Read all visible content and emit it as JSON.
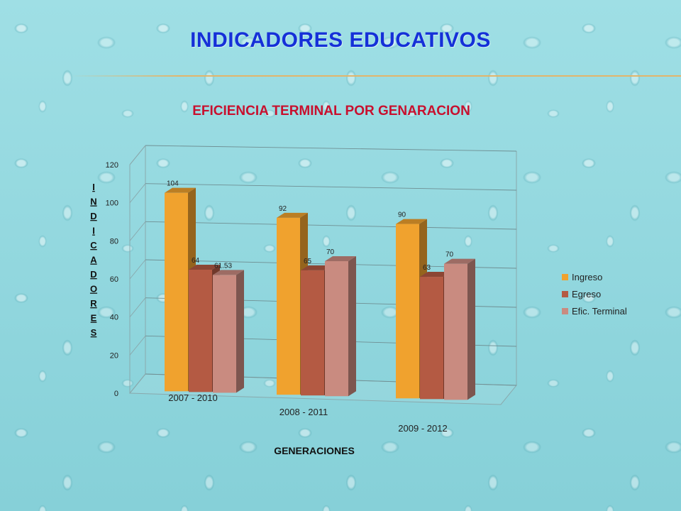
{
  "slide": {
    "title": "INDICADORES   EDUCATIVOS"
  },
  "chart_data": {
    "type": "bar",
    "title": "EFICIENCIA TERMINAL POR GENARACION",
    "xlabel": "GENERACIONES",
    "ylabel": "INDICADORES",
    "categories": [
      "2007 - 2010",
      "2008 - 2011",
      "2009 - 2012"
    ],
    "series": [
      {
        "name": "Ingreso",
        "values": [
          104,
          92,
          90
        ],
        "labels": [
          "104",
          "92",
          "90"
        ]
      },
      {
        "name": "Egreso",
        "values": [
          64,
          65,
          63
        ],
        "labels": [
          "64",
          "65",
          "63"
        ]
      },
      {
        "name": "Efic. Terminal",
        "values": [
          61.53,
          70,
          70
        ],
        "labels": [
          "61.53",
          "70",
          "70"
        ]
      }
    ],
    "ylim": [
      0,
      120
    ],
    "yticks": [
      "0",
      "20",
      "40",
      "60",
      "80",
      "100",
      "120"
    ],
    "grid": true,
    "legend_position": "right",
    "colors": [
      "#f0a22e",
      "#b45a43",
      "#c98b80"
    ]
  }
}
